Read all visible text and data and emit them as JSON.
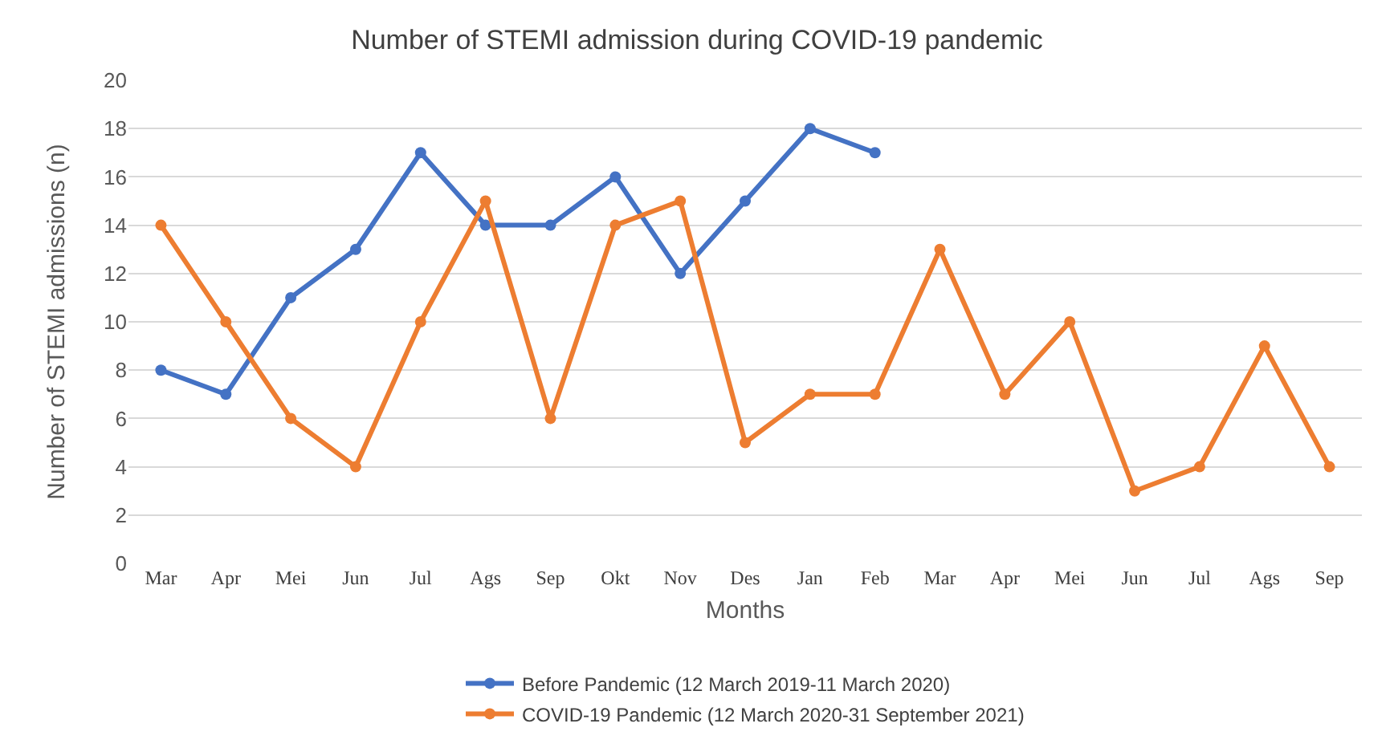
{
  "chart_data": {
    "type": "line",
    "title": "Number of STEMI admission during COVID-19 pandemic",
    "xlabel": "Months",
    "ylabel": "Number of STEMI admissions (n)",
    "categories": [
      "Mar",
      "Apr",
      "Mei",
      "Jun",
      "Jul",
      "Ags",
      "Sep",
      "Okt",
      "Nov",
      "Des",
      "Jan",
      "Feb",
      "Mar",
      "Apr",
      "Mei",
      "Jun",
      "Jul",
      "Ags",
      "Sep"
    ],
    "series": [
      {
        "name": "Before Pandemic (12 March 2019-11 March 2020)",
        "color": "#4472c4",
        "values": [
          8,
          7,
          11,
          13,
          17,
          14,
          14,
          16,
          12,
          15,
          18,
          17,
          null,
          null,
          null,
          null,
          null,
          null,
          null
        ]
      },
      {
        "name": "COVID-19 Pandemic (12 March 2020-31 September 2021)",
        "color": "#ed7d31",
        "values": [
          14,
          10,
          6,
          4,
          10,
          15,
          6,
          14,
          15,
          5,
          7,
          7,
          13,
          7,
          10,
          3,
          4,
          9,
          4
        ]
      }
    ],
    "ylim": [
      0,
      20
    ],
    "yticks": [
      0,
      2,
      4,
      6,
      8,
      10,
      12,
      14,
      16,
      18,
      20
    ],
    "grid": "y",
    "legend": "bottom",
    "marker": "circle",
    "line_style": "solid"
  }
}
